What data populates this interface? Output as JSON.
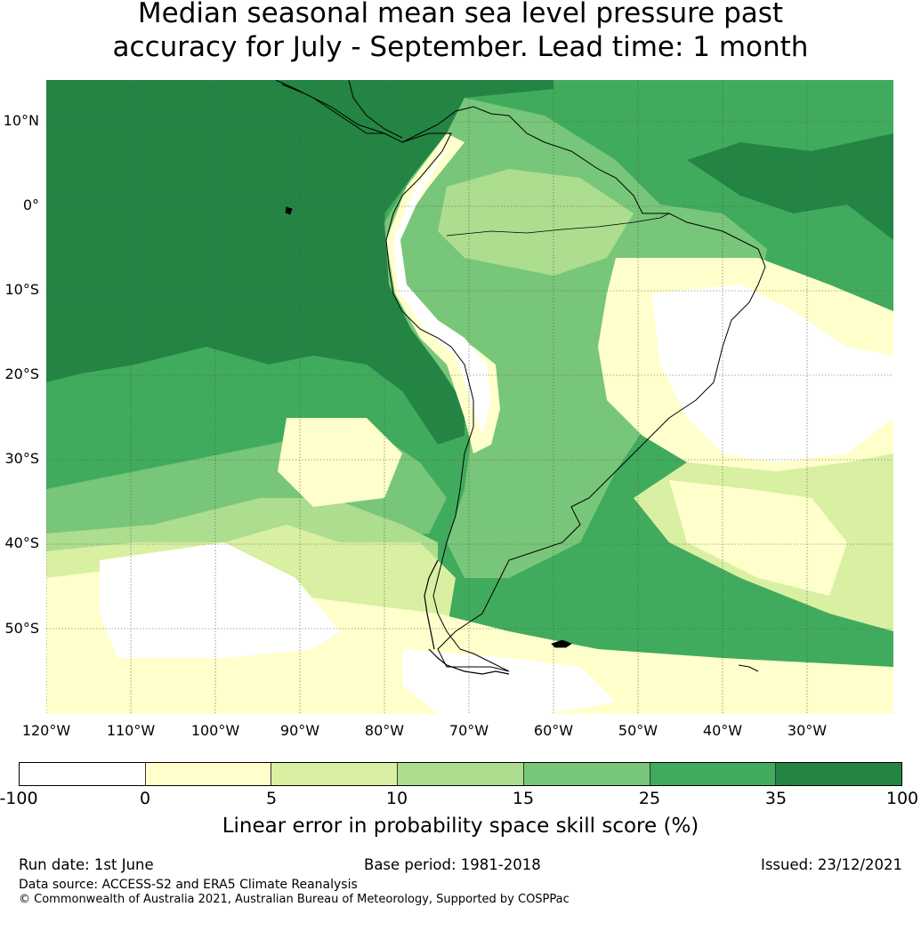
{
  "title": {
    "line1": "Median seasonal mean sea level pressure past",
    "line2": "accuracy for July - September. Lead time: 1 month"
  },
  "map": {
    "latitude_labels": [
      "10°N",
      "0°",
      "10°S",
      "20°S",
      "30°S",
      "40°S",
      "50°S"
    ],
    "longitude_labels": [
      "120°W",
      "110°W",
      "100°W",
      "90°W",
      "80°W",
      "70°W",
      "60°W",
      "50°W",
      "40°W",
      "30°W"
    ],
    "land_outline_color": "#000000",
    "gridline_color": "#555555"
  },
  "colorbar": {
    "ticks": [
      "-100",
      "0",
      "5",
      "10",
      "15",
      "25",
      "35",
      "100"
    ],
    "colors": [
      "#ffffff",
      "#ffffcc",
      "#d9f0a3",
      "#addd8e",
      "#78c679",
      "#41ab5d",
      "#238443"
    ],
    "label": "Linear error in probability space skill score (%)"
  },
  "footer": {
    "run_date": "Run date: 1st June",
    "base_period": "Base period: 1981-2018",
    "issued": "Issued: 23/12/2021",
    "data_source": "Data source: ACCESS-S2 and ERA5 Climate Reanalysis",
    "copyright": "© Commonwealth of Australia 2021, Australian Bureau of Meteorology, Supported by COSPPac"
  }
}
